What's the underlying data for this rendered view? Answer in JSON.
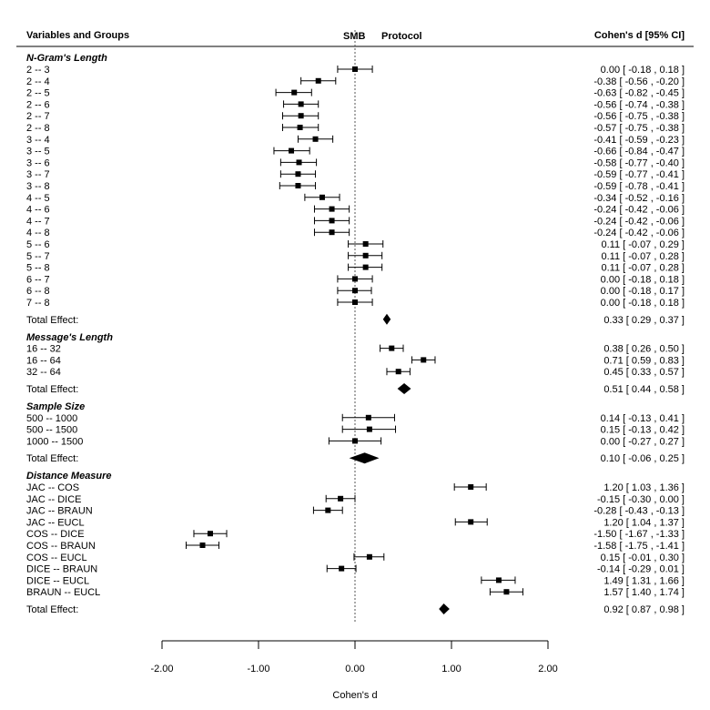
{
  "chart_data": {
    "type": "forest",
    "header": {
      "left": "Variables and Groups",
      "center_left": "SMB",
      "center_right": "Protocol",
      "right": "Cohen's d  [95% CI]"
    },
    "xlabel": "Cohen's d",
    "xlim": [
      -2.0,
      2.0
    ],
    "xticks": [
      -2,
      -1,
      0,
      1,
      2
    ],
    "xtick_labels": [
      "-2.00",
      "-1.00",
      "0.00",
      "1.00",
      "2.00"
    ],
    "reference_line": 0,
    "groups": [
      {
        "title": "N-Gram's Length",
        "rows": [
          {
            "label": "2 -- 3",
            "d": 0.0,
            "lo": -0.18,
            "hi": 0.18,
            "text": "0.00 [ -0.18 ,  0.18 ]"
          },
          {
            "label": "2 -- 4",
            "d": -0.38,
            "lo": -0.56,
            "hi": -0.2,
            "text": "-0.38 [ -0.56 , -0.20 ]"
          },
          {
            "label": "2 -- 5",
            "d": -0.63,
            "lo": -0.82,
            "hi": -0.45,
            "text": "-0.63 [ -0.82 , -0.45 ]"
          },
          {
            "label": "2 -- 6",
            "d": -0.56,
            "lo": -0.74,
            "hi": -0.38,
            "text": "-0.56 [ -0.74 , -0.38 ]"
          },
          {
            "label": "2 -- 7",
            "d": -0.56,
            "lo": -0.75,
            "hi": -0.38,
            "text": "-0.56 [ -0.75 , -0.38 ]"
          },
          {
            "label": "2 -- 8",
            "d": -0.57,
            "lo": -0.75,
            "hi": -0.38,
            "text": "-0.57 [ -0.75 , -0.38 ]"
          },
          {
            "label": "3 -- 4",
            "d": -0.41,
            "lo": -0.59,
            "hi": -0.23,
            "text": "-0.41 [ -0.59 , -0.23 ]"
          },
          {
            "label": "3 -- 5",
            "d": -0.66,
            "lo": -0.84,
            "hi": -0.47,
            "text": "-0.66 [ -0.84 , -0.47 ]"
          },
          {
            "label": "3 -- 6",
            "d": -0.58,
            "lo": -0.77,
            "hi": -0.4,
            "text": "-0.58 [ -0.77 , -0.40 ]"
          },
          {
            "label": "3 -- 7",
            "d": -0.59,
            "lo": -0.77,
            "hi": -0.41,
            "text": "-0.59 [ -0.77 , -0.41 ]"
          },
          {
            "label": "3 -- 8",
            "d": -0.59,
            "lo": -0.78,
            "hi": -0.41,
            "text": "-0.59 [ -0.78 , -0.41 ]"
          },
          {
            "label": "4 -- 5",
            "d": -0.34,
            "lo": -0.52,
            "hi": -0.16,
            "text": "-0.34 [ -0.52 , -0.16 ]"
          },
          {
            "label": "4 -- 6",
            "d": -0.24,
            "lo": -0.42,
            "hi": -0.06,
            "text": "-0.24 [ -0.42 , -0.06 ]"
          },
          {
            "label": "4 -- 7",
            "d": -0.24,
            "lo": -0.42,
            "hi": -0.06,
            "text": "-0.24 [ -0.42 , -0.06 ]"
          },
          {
            "label": "4 -- 8",
            "d": -0.24,
            "lo": -0.42,
            "hi": -0.06,
            "text": "-0.24 [ -0.42 , -0.06 ]"
          },
          {
            "label": "5 -- 6",
            "d": 0.11,
            "lo": -0.07,
            "hi": 0.29,
            "text": "0.11 [ -0.07 ,  0.29 ]"
          },
          {
            "label": "5 -- 7",
            "d": 0.11,
            "lo": -0.07,
            "hi": 0.28,
            "text": "0.11 [ -0.07 ,  0.28 ]"
          },
          {
            "label": "5 -- 8",
            "d": 0.11,
            "lo": -0.07,
            "hi": 0.28,
            "text": "0.11 [ -0.07 ,  0.28 ]"
          },
          {
            "label": "6 -- 7",
            "d": 0.0,
            "lo": -0.18,
            "hi": 0.18,
            "text": "0.00 [ -0.18 ,  0.18 ]"
          },
          {
            "label": "6 -- 8",
            "d": 0.0,
            "lo": -0.18,
            "hi": 0.17,
            "text": "0.00 [ -0.18 ,  0.17 ]"
          },
          {
            "label": "7 -- 8",
            "d": 0.0,
            "lo": -0.18,
            "hi": 0.18,
            "text": "0.00 [ -0.18 ,  0.18 ]"
          }
        ],
        "total": {
          "label": "Total Effect:",
          "d": 0.33,
          "lo": 0.29,
          "hi": 0.37,
          "text": "0.33 [ 0.29 , 0.37 ]"
        }
      },
      {
        "title": "Message's Length",
        "rows": [
          {
            "label": "16 -- 32",
            "d": 0.38,
            "lo": 0.26,
            "hi": 0.5,
            "text": "0.38 [  0.26 ,  0.50 ]"
          },
          {
            "label": "16 -- 64",
            "d": 0.71,
            "lo": 0.59,
            "hi": 0.83,
            "text": "0.71 [  0.59 ,  0.83 ]"
          },
          {
            "label": "32 -- 64",
            "d": 0.45,
            "lo": 0.33,
            "hi": 0.57,
            "text": "0.45 [  0.33 ,  0.57 ]"
          }
        ],
        "total": {
          "label": "Total Effect:",
          "d": 0.51,
          "lo": 0.44,
          "hi": 0.58,
          "text": "0.51 [ 0.44 , 0.58 ]"
        }
      },
      {
        "title": "Sample Size",
        "rows": [
          {
            "label": "500 -- 1000",
            "d": 0.14,
            "lo": -0.13,
            "hi": 0.41,
            "text": "0.14 [ -0.13 ,  0.41 ]"
          },
          {
            "label": "500 -- 1500",
            "d": 0.15,
            "lo": -0.13,
            "hi": 0.42,
            "text": "0.15 [ -0.13 ,  0.42 ]"
          },
          {
            "label": "1000 -- 1500",
            "d": 0.0,
            "lo": -0.27,
            "hi": 0.27,
            "text": "0.00 [ -0.27 ,  0.27 ]"
          }
        ],
        "total": {
          "label": "Total Effect:",
          "d": 0.1,
          "lo": -0.06,
          "hi": 0.25,
          "text": "0.10 [ -0.06 , 0.25 ]"
        }
      },
      {
        "title": "Distance Measure",
        "rows": [
          {
            "label": "JAC -- COS",
            "d": 1.2,
            "lo": 1.03,
            "hi": 1.36,
            "text": "1.20 [  1.03 ,  1.36 ]"
          },
          {
            "label": "JAC -- DICE",
            "d": -0.15,
            "lo": -0.3,
            "hi": 0.0,
            "text": "-0.15 [ -0.30 ,  0.00 ]"
          },
          {
            "label": "JAC -- BRAUN",
            "d": -0.28,
            "lo": -0.43,
            "hi": -0.13,
            "text": "-0.28 [ -0.43 , -0.13 ]"
          },
          {
            "label": "JAC -- EUCL",
            "d": 1.2,
            "lo": 1.04,
            "hi": 1.37,
            "text": "1.20 [  1.04 ,  1.37 ]"
          },
          {
            "label": "COS -- DICE",
            "d": -1.5,
            "lo": -1.67,
            "hi": -1.33,
            "text": "-1.50 [ -1.67 , -1.33 ]"
          },
          {
            "label": "COS -- BRAUN",
            "d": -1.58,
            "lo": -1.75,
            "hi": -1.41,
            "text": "-1.58 [ -1.75 , -1.41 ]"
          },
          {
            "label": "COS -- EUCL",
            "d": 0.15,
            "lo": -0.01,
            "hi": 0.3,
            "text": "0.15 [ -0.01 ,  0.30 ]"
          },
          {
            "label": "DICE -- BRAUN",
            "d": -0.14,
            "lo": -0.29,
            "hi": 0.01,
            "text": "-0.14 [ -0.29 ,  0.01 ]"
          },
          {
            "label": "DICE -- EUCL",
            "d": 1.49,
            "lo": 1.31,
            "hi": 1.66,
            "text": "1.49 [  1.31 ,  1.66 ]"
          },
          {
            "label": "BRAUN -- EUCL",
            "d": 1.57,
            "lo": 1.4,
            "hi": 1.74,
            "text": "1.57 [  1.40 ,  1.74 ]"
          }
        ],
        "total": {
          "label": "Total Effect:",
          "d": 0.92,
          "lo": 0.87,
          "hi": 0.98,
          "text": "0.92 [ 0.87 , 0.98 ]"
        }
      }
    ]
  }
}
